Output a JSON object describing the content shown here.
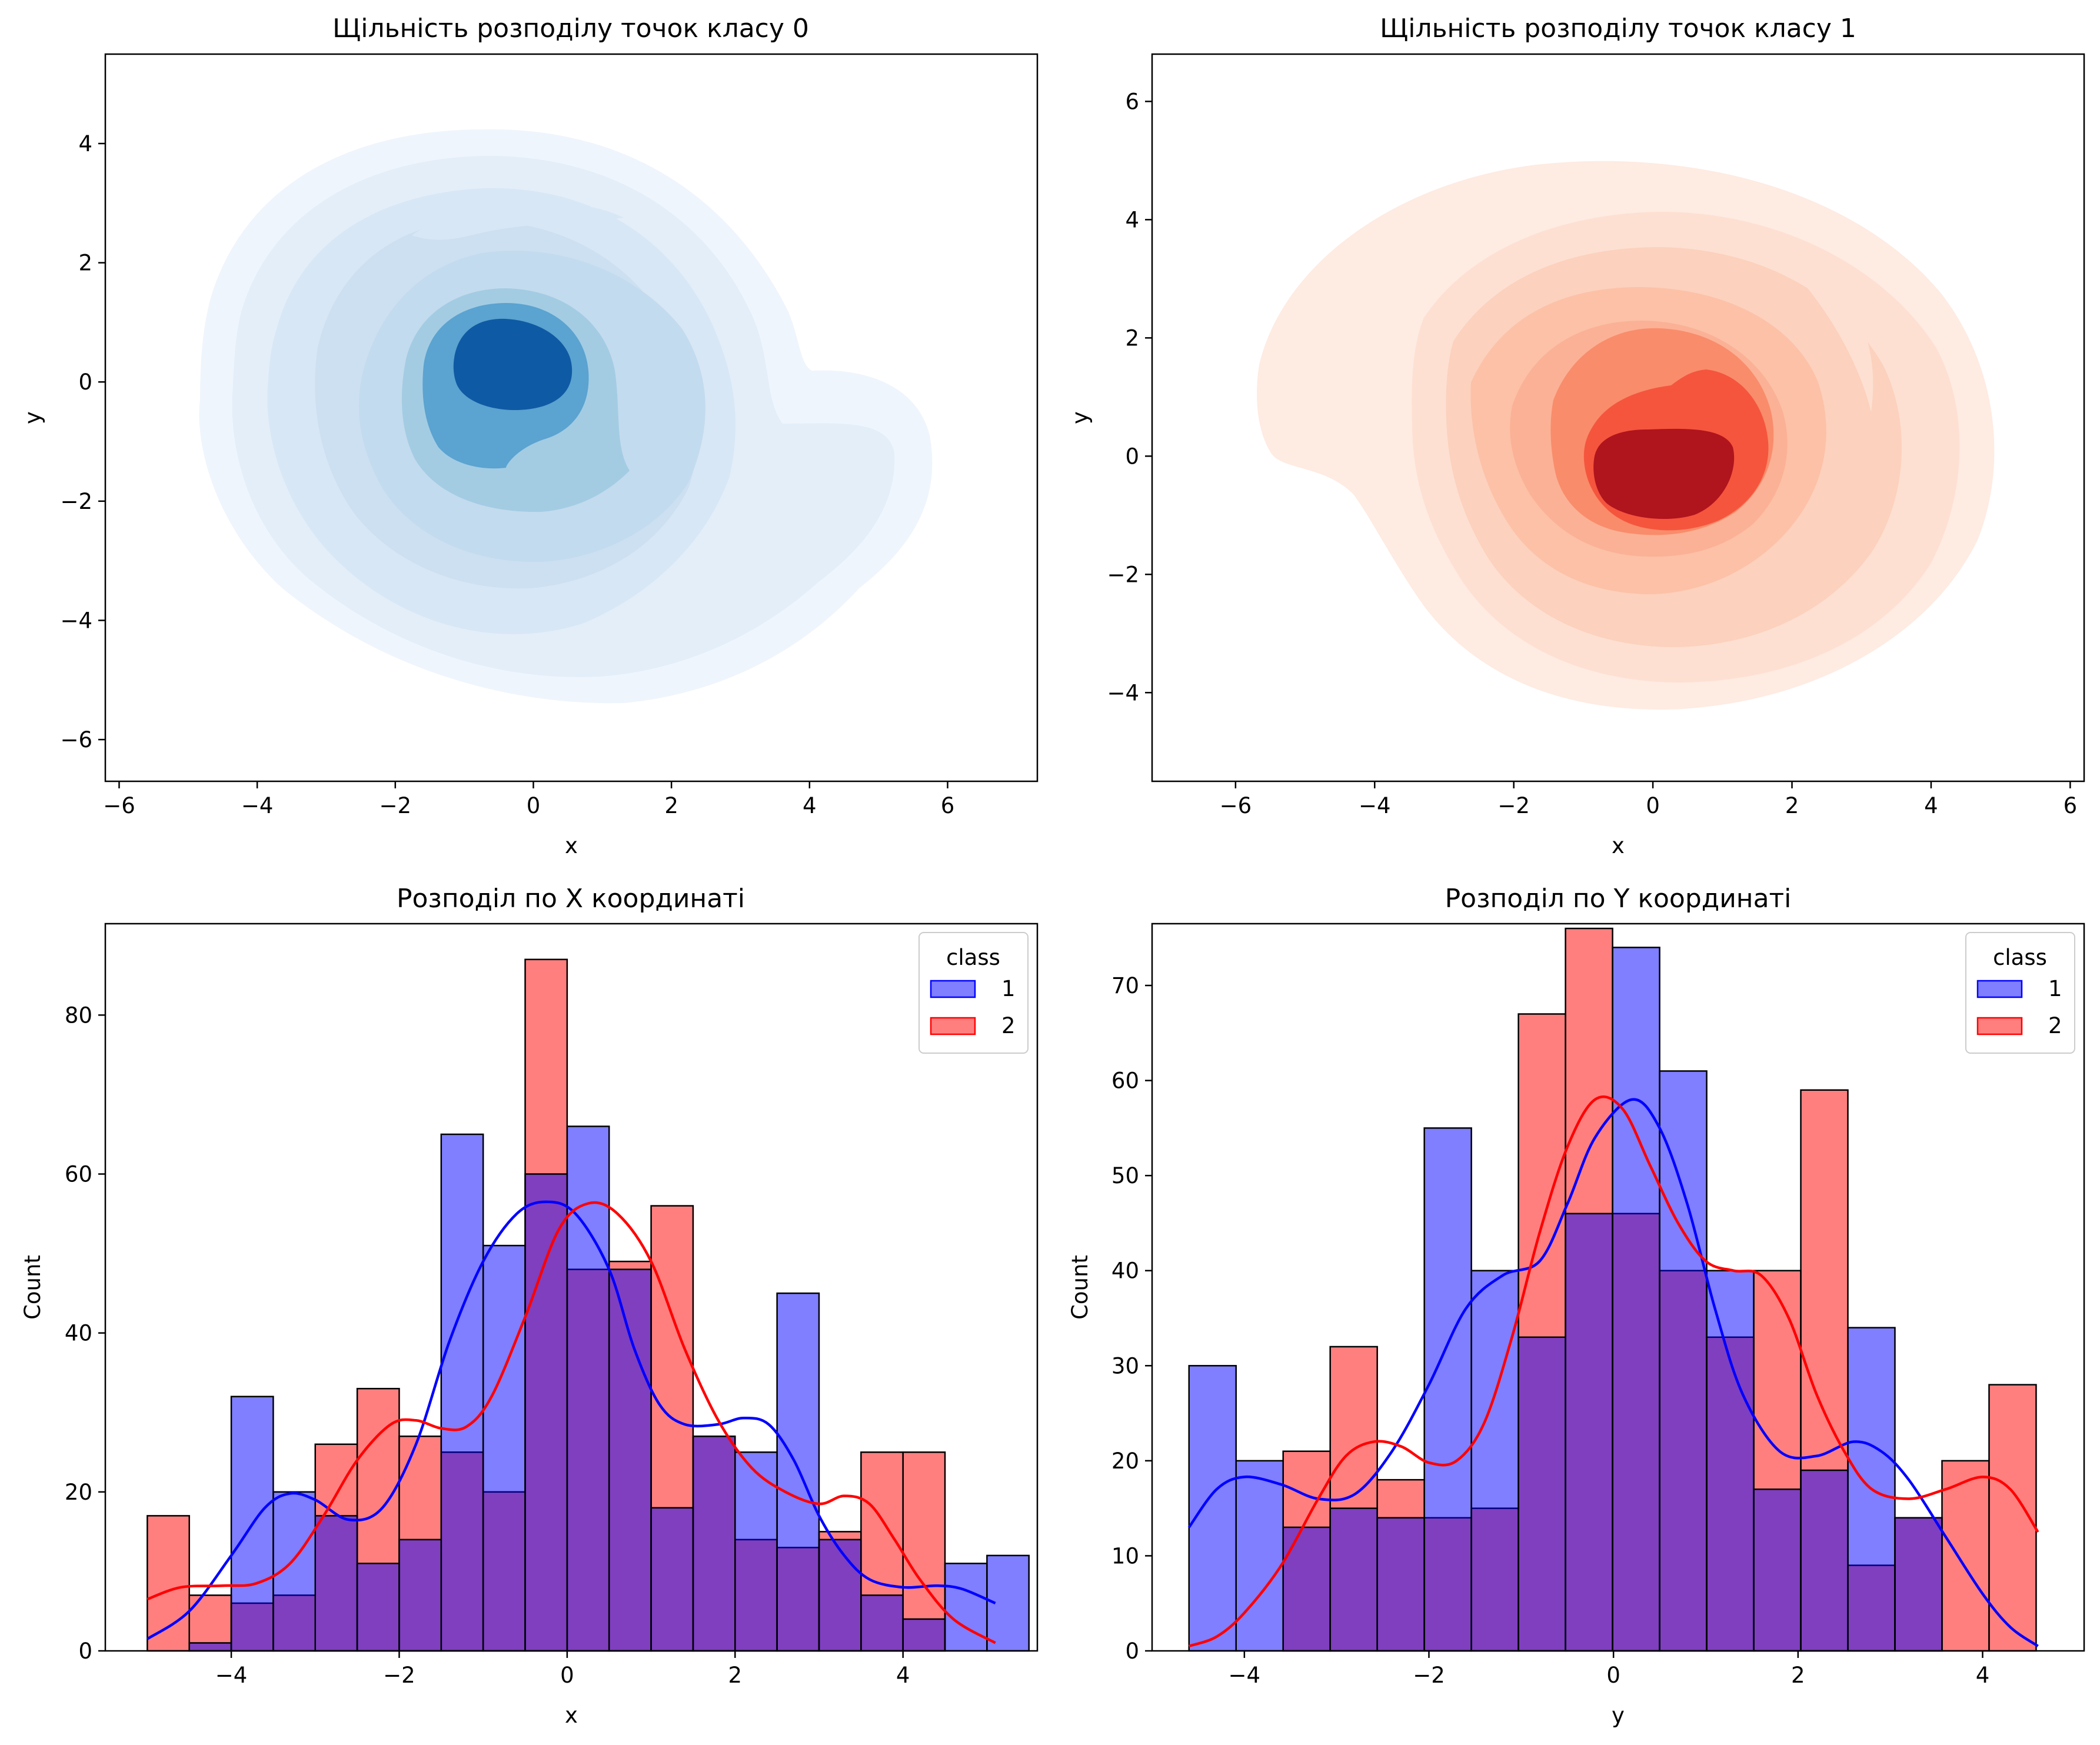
{
  "chart_data": [
    {
      "type": "kde",
      "title": "Щільність розподілу точок класу 0",
      "xlabel": "x",
      "ylabel": "y",
      "xlim": [
        -6.2,
        7.3
      ],
      "ylim": [
        -6.7,
        5.5
      ],
      "xticks": [
        -6,
        -4,
        -2,
        0,
        2,
        4,
        6
      ],
      "yticks": [
        -6,
        -4,
        -2,
        0,
        2,
        4
      ],
      "colormap": "Blues",
      "levels": [
        "#eff5fc",
        "#e3eef9",
        "#d8e7f5",
        "#cde0f1",
        "#c3dbee",
        "#a3cce3",
        "#5ba3d0",
        "#0f5aa4"
      ],
      "center": [
        -0.35,
        0.25
      ],
      "density_peak_value": null
    },
    {
      "type": "kde",
      "title": "Щільність розподілу точок класу 1",
      "xlabel": "x",
      "ylabel": "y",
      "xlim": [
        -7.2,
        6.2
      ],
      "ylim": [
        -5.5,
        6.8
      ],
      "xticks": [
        -6,
        -4,
        -2,
        0,
        2,
        4,
        6
      ],
      "yticks": [
        -4,
        -2,
        0,
        2,
        4,
        6
      ],
      "colormap": "Reds",
      "levels": [
        "#feebe2",
        "#fde0d2",
        "#fcd1bd",
        "#fcc1a7",
        "#fbb195",
        "#f98c6b",
        "#f5553d",
        "#b0141d"
      ],
      "center": [
        0.3,
        -0.3
      ],
      "density_peak_value": null
    },
    {
      "type": "histogram",
      "title": "Розподіл по X координаті",
      "xlabel": "x",
      "ylabel": "Count",
      "xlim": [
        -5.5,
        5.6
      ],
      "ylim": [
        0,
        91.5
      ],
      "xticks": [
        -4,
        -2,
        0,
        2,
        4
      ],
      "yticks": [
        0,
        20,
        40,
        60,
        80
      ],
      "bin_start": -5.0,
      "bin_width": 0.5,
      "legend_title": "class",
      "legend_position": "top-right",
      "series": [
        {
          "name": "1",
          "color": "#0000ff",
          "values": [
            0,
            1,
            32,
            20,
            17,
            11,
            14,
            65,
            51,
            60,
            66,
            48,
            18,
            27,
            25,
            45,
            14,
            7,
            4,
            11,
            12
          ],
          "kde": [
            [
              -5.0,
              1.5
            ],
            [
              -4.5,
              5
            ],
            [
              -4.0,
              12
            ],
            [
              -3.6,
              18
            ],
            [
              -3.3,
              19.8
            ],
            [
              -3.0,
              19
            ],
            [
              -2.6,
              16.5
            ],
            [
              -2.2,
              18
            ],
            [
              -1.8,
              26
            ],
            [
              -1.4,
              39
            ],
            [
              -1.0,
              49
            ],
            [
              -0.6,
              55
            ],
            [
              -0.25,
              56.5
            ],
            [
              0.1,
              55
            ],
            [
              0.5,
              48
            ],
            [
              0.8,
              38
            ],
            [
              1.1,
              31
            ],
            [
              1.4,
              28.5
            ],
            [
              1.8,
              28.5
            ],
            [
              2.1,
              29.3
            ],
            [
              2.4,
              28.5
            ],
            [
              2.7,
              24
            ],
            [
              3.0,
              17
            ],
            [
              3.3,
              12
            ],
            [
              3.6,
              9
            ],
            [
              4.0,
              8
            ],
            [
              4.4,
              8.2
            ],
            [
              4.7,
              7.8
            ],
            [
              5.1,
              6
            ]
          ]
        },
        {
          "name": "2",
          "color": "#ff0000",
          "values": [
            17,
            7,
            6,
            7,
            26,
            33,
            27,
            25,
            20,
            87,
            48,
            49,
            56,
            27,
            14,
            13,
            15,
            25,
            25,
            0,
            0
          ],
          "kde": [
            [
              -5.0,
              6.5
            ],
            [
              -4.6,
              8
            ],
            [
              -4.1,
              8.2
            ],
            [
              -3.7,
              8.5
            ],
            [
              -3.3,
              11
            ],
            [
              -2.9,
              17
            ],
            [
              -2.5,
              24
            ],
            [
              -2.1,
              28.5
            ],
            [
              -1.8,
              29
            ],
            [
              -1.5,
              28
            ],
            [
              -1.2,
              28.2
            ],
            [
              -0.9,
              32
            ],
            [
              -0.5,
              42
            ],
            [
              -0.1,
              53
            ],
            [
              0.25,
              56.3
            ],
            [
              0.6,
              55
            ],
            [
              1.0,
              49
            ],
            [
              1.4,
              38
            ],
            [
              1.8,
              29
            ],
            [
              2.2,
              23
            ],
            [
              2.6,
              20
            ],
            [
              3.0,
              18.5
            ],
            [
              3.3,
              19.5
            ],
            [
              3.6,
              18.5
            ],
            [
              3.9,
              14
            ],
            [
              4.2,
              9
            ],
            [
              4.6,
              4
            ],
            [
              5.1,
              1
            ]
          ]
        }
      ]
    },
    {
      "type": "histogram",
      "title": "Розподіл по Y координаті",
      "xlabel": "y",
      "ylabel": "Count",
      "xlim": [
        -5.0,
        5.1
      ],
      "ylim": [
        0,
        76.5
      ],
      "xticks": [
        -4,
        -2,
        0,
        2,
        4
      ],
      "yticks": [
        0,
        10,
        20,
        30,
        40,
        50,
        60,
        70
      ],
      "bin_start": -4.6,
      "bin_width": 0.51,
      "legend_title": "class",
      "legend_position": "top-right",
      "series": [
        {
          "name": "1",
          "color": "#0000ff",
          "values": [
            30,
            20,
            13,
            15,
            14,
            55,
            40,
            33,
            46,
            74,
            61,
            40,
            17,
            19,
            34,
            14,
            0,
            0
          ],
          "kde": [
            [
              -4.6,
              13
            ],
            [
              -4.3,
              17
            ],
            [
              -4.0,
              18.3
            ],
            [
              -3.6,
              17.5
            ],
            [
              -3.2,
              16
            ],
            [
              -2.8,
              16.5
            ],
            [
              -2.4,
              21
            ],
            [
              -2.0,
              28
            ],
            [
              -1.6,
              36
            ],
            [
              -1.2,
              39.5
            ],
            [
              -0.8,
              41
            ],
            [
              -0.5,
              47
            ],
            [
              -0.2,
              54
            ],
            [
              0.2,
              58
            ],
            [
              0.5,
              55
            ],
            [
              0.8,
              47
            ],
            [
              1.1,
              36
            ],
            [
              1.4,
              27
            ],
            [
              1.8,
              21
            ],
            [
              2.2,
              20.5
            ],
            [
              2.6,
              22
            ],
            [
              2.9,
              21
            ],
            [
              3.2,
              18
            ],
            [
              3.6,
              12
            ],
            [
              4.0,
              6
            ],
            [
              4.3,
              2.5
            ],
            [
              4.6,
              0.5
            ]
          ]
        },
        {
          "name": "2",
          "color": "#ff0000",
          "values": [
            0,
            0,
            21,
            32,
            18,
            14,
            15,
            67,
            76,
            46,
            40,
            33,
            40,
            59,
            9,
            14,
            20,
            28
          ],
          "kde": [
            [
              -4.6,
              0.5
            ],
            [
              -4.3,
              1.5
            ],
            [
              -4.0,
              4
            ],
            [
              -3.6,
              9
            ],
            [
              -3.2,
              16
            ],
            [
              -2.9,
              20.5
            ],
            [
              -2.6,
              22
            ],
            [
              -2.3,
              21.5
            ],
            [
              -2.0,
              19.8
            ],
            [
              -1.7,
              20
            ],
            [
              -1.4,
              24
            ],
            [
              -1.1,
              33
            ],
            [
              -0.8,
              44
            ],
            [
              -0.5,
              53
            ],
            [
              -0.2,
              58
            ],
            [
              0.1,
              57
            ],
            [
              0.4,
              51
            ],
            [
              0.7,
              45
            ],
            [
              1.0,
              41
            ],
            [
              1.3,
              40
            ],
            [
              1.6,
              39.5
            ],
            [
              1.9,
              35
            ],
            [
              2.2,
              27
            ],
            [
              2.5,
              21
            ],
            [
              2.8,
              17
            ],
            [
              3.2,
              16
            ],
            [
              3.6,
              17
            ],
            [
              4.0,
              18.3
            ],
            [
              4.3,
              17
            ],
            [
              4.6,
              12.5
            ]
          ]
        }
      ]
    }
  ]
}
